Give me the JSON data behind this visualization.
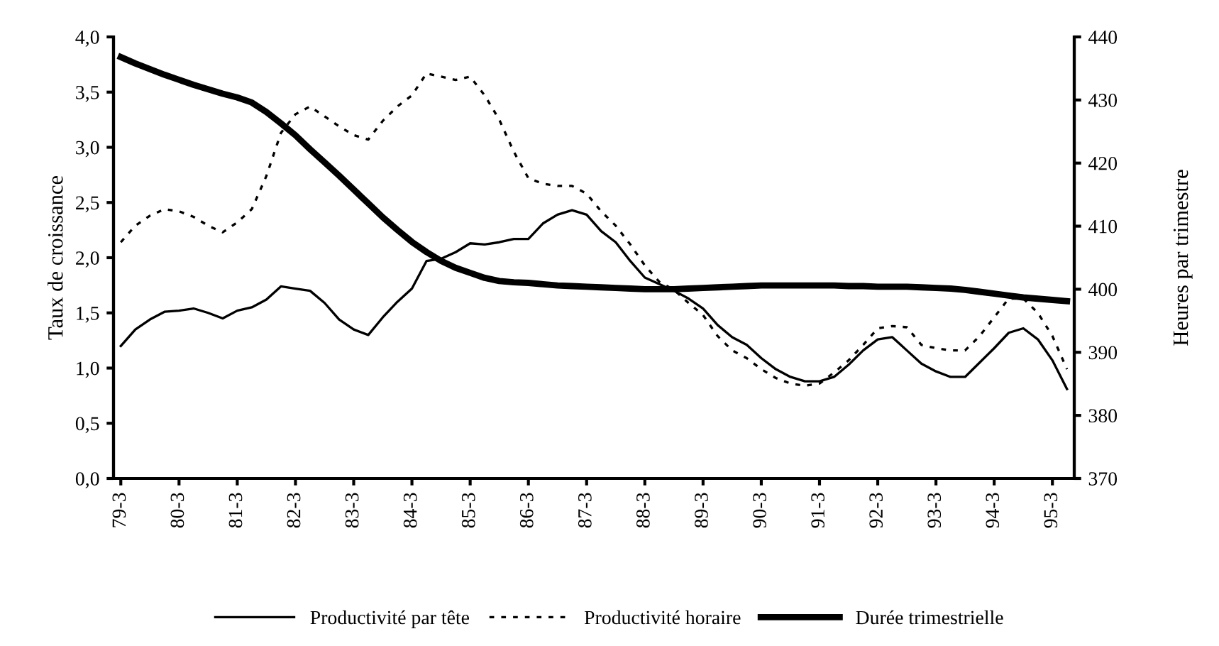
{
  "chart_data": {
    "type": "line",
    "ylabel": "Taux de croissance",
    "y2label": "Heures par trimestre",
    "categories": [
      "79-3",
      null,
      null,
      null,
      "80-3",
      null,
      null,
      null,
      "81-3",
      null,
      null,
      null,
      "82-3",
      null,
      null,
      null,
      "83-3",
      null,
      null,
      null,
      "84-3",
      null,
      null,
      null,
      "85-3",
      null,
      null,
      null,
      "86-3",
      null,
      null,
      null,
      "87-3",
      null,
      null,
      null,
      "88-3",
      null,
      null,
      null,
      "89-3",
      null,
      null,
      null,
      "90-3",
      null,
      null,
      null,
      "91-3",
      null,
      null,
      null,
      "92-3",
      null,
      null,
      null,
      "93-3",
      null,
      null,
      null,
      "94-3",
      null,
      null,
      null,
      "95-3",
      null
    ],
    "ylim": [
      0,
      4
    ],
    "yticks": [
      {
        "value": 0,
        "label": "0,0"
      },
      {
        "value": 0.5,
        "label": "0,5"
      },
      {
        "value": 1,
        "label": "1,0"
      },
      {
        "value": 1.5,
        "label": "1,5"
      },
      {
        "value": 2,
        "label": "2,0"
      },
      {
        "value": 2.5,
        "label": "2,5"
      },
      {
        "value": 3,
        "label": "3,0"
      },
      {
        "value": 3.5,
        "label": "3,5"
      },
      {
        "value": 4,
        "label": "4,0"
      }
    ],
    "y2lim": [
      370,
      440
    ],
    "y2ticks": [
      370,
      380,
      390,
      400,
      410,
      420,
      430,
      440
    ],
    "grid": false,
    "legend": "bottom",
    "marker": "none",
    "series": [
      {
        "name": "Productivité par tête",
        "color": "#000000",
        "line_style": "solid",
        "values": [
          1.2,
          1.35,
          1.44,
          1.51,
          1.52,
          1.54,
          1.5,
          1.45,
          1.52,
          1.55,
          1.62,
          1.74,
          1.72,
          1.7,
          1.59,
          1.44,
          1.35,
          1.3,
          1.46,
          1.6,
          1.72,
          1.97,
          1.99,
          2.05,
          2.13,
          2.12,
          2.14,
          2.17,
          2.17,
          2.31,
          2.39,
          2.43,
          2.39,
          2.24,
          2.14,
          1.97,
          1.82,
          1.76,
          1.7,
          1.63,
          1.54,
          1.39,
          1.28,
          1.21,
          1.09,
          0.99,
          0.92,
          0.88,
          0.88,
          0.92,
          1.03,
          1.16,
          1.26,
          1.28,
          1.16,
          1.04,
          0.97,
          0.92,
          0.92,
          1.05,
          1.18,
          1.32,
          1.36,
          1.26,
          1.07,
          0.81
        ]
      },
      {
        "name": "Productivité horaire",
        "color": "#000000",
        "line_style": "dotted",
        "values": [
          2.14,
          2.29,
          2.38,
          2.44,
          2.42,
          2.37,
          2.29,
          2.23,
          2.32,
          2.44,
          2.74,
          3.13,
          3.3,
          3.37,
          3.28,
          3.19,
          3.11,
          3.07,
          3.24,
          3.37,
          3.47,
          3.67,
          3.64,
          3.61,
          3.64,
          3.47,
          3.25,
          2.96,
          2.72,
          2.67,
          2.65,
          2.65,
          2.58,
          2.42,
          2.29,
          2.12,
          1.93,
          1.78,
          1.71,
          1.59,
          1.48,
          1.29,
          1.16,
          1.09,
          0.99,
          0.91,
          0.86,
          0.84,
          0.86,
          0.96,
          1.07,
          1.21,
          1.36,
          1.38,
          1.37,
          1.21,
          1.18,
          1.16,
          1.16,
          1.29,
          1.46,
          1.63,
          1.63,
          1.5,
          1.29,
          0.99
        ]
      },
      {
        "name": "Durée trimestrielle",
        "color": "#000000",
        "line_style": "solid",
        "axis": "y2",
        "values": [
          436.8,
          435.8,
          434.9,
          434.0,
          433.2,
          432.4,
          431.7,
          431.0,
          430.4,
          429.6,
          428.1,
          426.3,
          424.4,
          422.2,
          420.1,
          418.0,
          415.8,
          413.6,
          411.4,
          409.4,
          407.5,
          405.9,
          404.5,
          403.4,
          402.6,
          401.8,
          401.3,
          401.1,
          401.0,
          400.8,
          400.6,
          400.5,
          400.4,
          400.3,
          400.2,
          400.1,
          400.0,
          400.0,
          400.0,
          400.1,
          400.2,
          400.3,
          400.4,
          400.5,
          400.6,
          400.6,
          400.6,
          400.6,
          400.6,
          400.6,
          400.5,
          400.5,
          400.4,
          400.4,
          400.4,
          400.3,
          400.2,
          400.1,
          399.9,
          399.6,
          399.3,
          399.0,
          398.7,
          398.5,
          398.3,
          398.1
        ]
      }
    ]
  }
}
